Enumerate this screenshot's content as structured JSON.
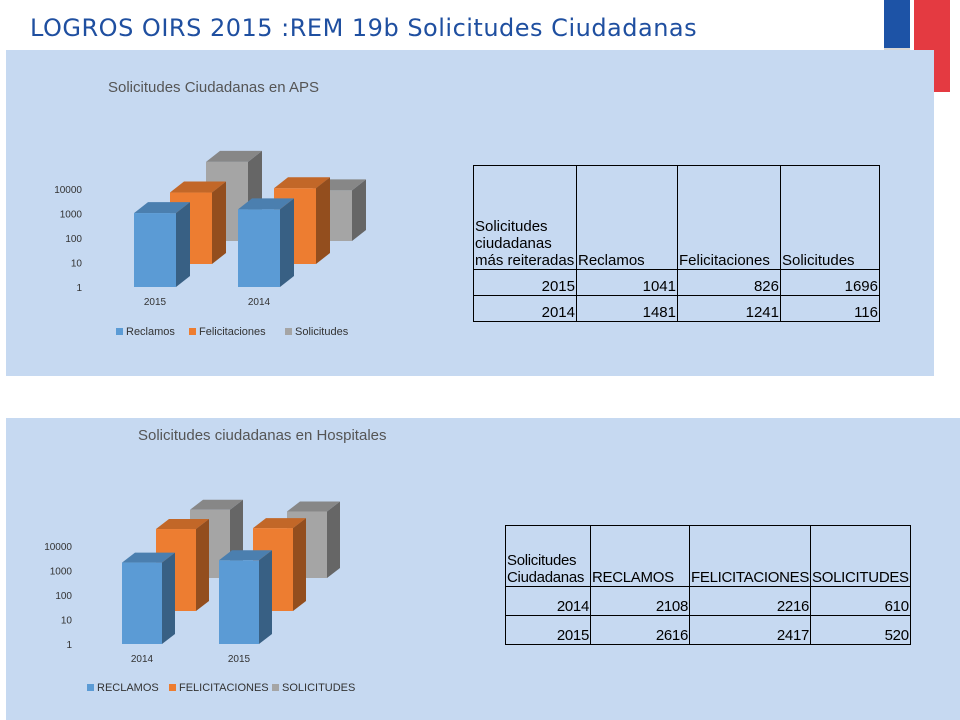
{
  "slide": {
    "title": "LOGROS OIRS 2015 :REM 19b Solicitudes Ciudadanas",
    "colors": {
      "title": "#1f4fa0",
      "panel": "#c6d9f1",
      "flag_blue": "#1d53a6",
      "flag_red": "#e43a41"
    }
  },
  "chart_data": [
    {
      "type": "bar",
      "title": "Solicitudes Ciudadanas en APS",
      "categories": [
        "2015",
        "2014"
      ],
      "y_ticks": [
        "10000",
        "1000",
        "100",
        "10",
        "1"
      ],
      "yscale": "log",
      "ylim": [
        1,
        10000
      ],
      "series": [
        {
          "name": "Reclamos",
          "values": [
            1041,
            1481
          ],
          "color": "#5b9bd5"
        },
        {
          "name": "Felicitaciones",
          "values": [
            826,
            1241
          ],
          "color": "#ed7d31"
        },
        {
          "name": "Solicitudes",
          "values": [
            1696,
            116
          ],
          "color": "#a5a5a5"
        }
      ],
      "legend_position": "bottom",
      "table": {
        "header": [
          "Solicitudes ciudadanas más reiteradas",
          "Reclamos",
          "Felicitaciones",
          "Solicitudes"
        ],
        "rows": [
          [
            "2015",
            "1041",
            "826",
            "1696"
          ],
          [
            "2014",
            "1481",
            "1241",
            "116"
          ]
        ]
      }
    },
    {
      "type": "bar",
      "title": "Solicitudes ciudadanas en Hospitales",
      "categories": [
        "2014",
        "2015"
      ],
      "y_ticks": [
        "10000",
        "1000",
        "100",
        "10",
        "1"
      ],
      "yscale": "log",
      "ylim": [
        1,
        10000
      ],
      "series": [
        {
          "name": "RECLAMOS",
          "values": [
            2108,
            2616
          ],
          "color": "#5b9bd5"
        },
        {
          "name": "FELICITACIONES",
          "values": [
            2216,
            2417
          ],
          "color": "#ed7d31"
        },
        {
          "name": "SOLICITUDES",
          "values": [
            610,
            520
          ],
          "color": "#a5a5a5"
        }
      ],
      "legend_position": "bottom",
      "table": {
        "header": [
          "Solicitudes Ciudadanas",
          "RECLAMOS",
          "FELICITACIONES",
          "SOLICITUDES"
        ],
        "rows": [
          [
            "2014",
            "2108",
            "2216",
            "610"
          ],
          [
            "2015",
            "2616",
            "2417",
            "520"
          ]
        ]
      }
    }
  ]
}
